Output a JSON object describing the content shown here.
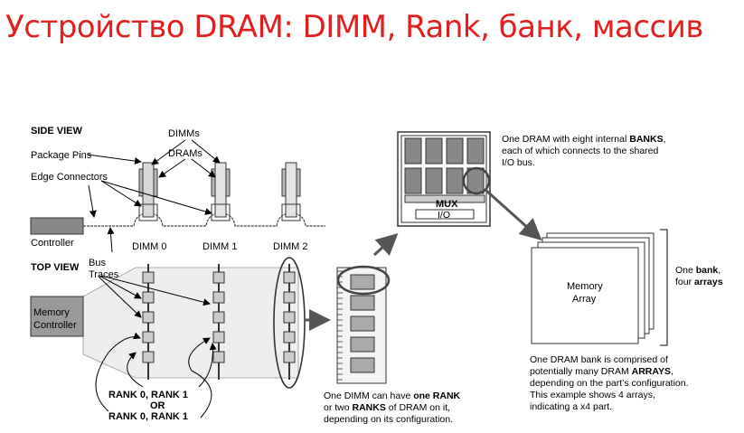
{
  "slide": {
    "title": "Устройство DRAM: DIMM, Rank, банк, массив"
  },
  "side_view": {
    "heading": "SIDE VIEW",
    "package_pins": "Package Pins",
    "edge_connectors": "Edge Connectors",
    "dimms": "DIMMs",
    "drams": "DRAMs",
    "controller": "Controller",
    "dimm_labels": [
      "DIMM 0",
      "DIMM 1",
      "DIMM 2"
    ]
  },
  "top_view": {
    "heading": "TOP VIEW",
    "bus_traces_1": "Bus",
    "bus_traces_2": "Traces",
    "memory_controller_1": "Memory",
    "memory_controller_2": "Controller",
    "rank_line1": "RANK 0, RANK 1",
    "rank_line2": "OR",
    "rank_line3": "RANK 0, RANK 1"
  },
  "dimm_note": {
    "l1a": "One DIMM can have ",
    "l1b": "one RANK",
    "l2a": "or two ",
    "l2b": "RANKS",
    "l2c": " of DRAM on it,",
    "l3": "depending on its configuration."
  },
  "dram_chip": {
    "mux": "MUX",
    "io": "I/O",
    "note_l1a": "One DRAM with eight internal ",
    "note_l1b": "BANKS",
    "note_l1c": ",",
    "note_l2": "each of which connects to the shared",
    "note_l3": "I/O bus."
  },
  "bank": {
    "array_1": "Memory",
    "array_2": "Array",
    "side_1a": "One ",
    "side_1b": "bank",
    "side_1c": ",",
    "side_2a": "four ",
    "side_2b": "arrays",
    "note_l1": "One DRAM bank is comprised of",
    "note_l2a": "potentially many DRAM ",
    "note_l2b": "ARRAYS",
    "note_l2c": ",",
    "note_l3": "depending on the part’s configuration.",
    "note_l4": "This example shows 4 arrays,",
    "note_l5": "indicating a x4 part."
  }
}
